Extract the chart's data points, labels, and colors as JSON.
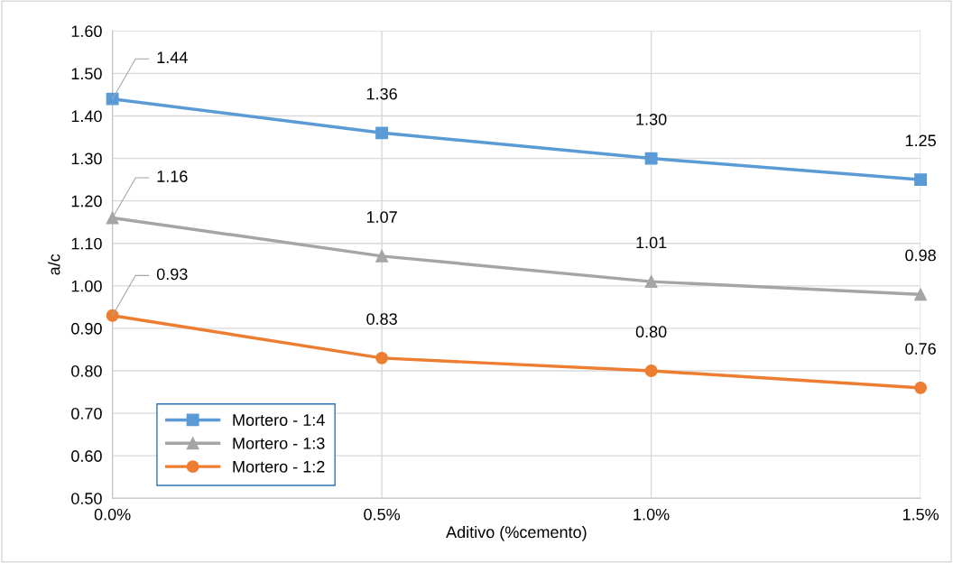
{
  "chart_data": {
    "type": "line",
    "xlabel": "Aditivo (%cemento)",
    "ylabel": "a/c",
    "x": [
      0,
      0.5,
      1.0,
      1.5
    ],
    "xlim": [
      0,
      1.5
    ],
    "xticks": [
      {
        "value": 0,
        "label": "0.0%"
      },
      {
        "value": 0.5,
        "label": "0.5%"
      },
      {
        "value": 1.0,
        "label": "1.0%"
      },
      {
        "value": 1.5,
        "label": "1.5%"
      }
    ],
    "ylim": [
      0.5,
      1.6
    ],
    "yticks": [
      {
        "value": 0.5,
        "label": "0.50"
      },
      {
        "value": 0.6,
        "label": "0.60"
      },
      {
        "value": 0.7,
        "label": "0.70"
      },
      {
        "value": 0.8,
        "label": "0.80"
      },
      {
        "value": 0.9,
        "label": "0.90"
      },
      {
        "value": 1.0,
        "label": "1.00"
      },
      {
        "value": 1.1,
        "label": "1.10"
      },
      {
        "value": 1.2,
        "label": "1.20"
      },
      {
        "value": 1.3,
        "label": "1.30"
      },
      {
        "value": 1.4,
        "label": "1.40"
      },
      {
        "value": 1.5,
        "label": "1.50"
      },
      {
        "value": 1.6,
        "label": "1.60"
      }
    ],
    "grid": true,
    "legend": "bottom left",
    "series": [
      {
        "name": "Mortero - 1:4",
        "color": "#5b9bd5",
        "marker": "square",
        "values": [
          1.44,
          1.36,
          1.3,
          1.25
        ],
        "value_labels": [
          "1.44",
          "1.36",
          "1.30",
          "1.25"
        ]
      },
      {
        "name": "Mortero - 1:3",
        "color": "#a5a5a5",
        "marker": "triangle",
        "values": [
          1.16,
          1.07,
          1.01,
          0.98
        ],
        "value_labels": [
          "1.16",
          "1.07",
          "1.01",
          "0.98"
        ]
      },
      {
        "name": "Mortero - 1:2",
        "color": "#ed7d31",
        "marker": "circle",
        "values": [
          0.93,
          0.83,
          0.8,
          0.76
        ],
        "value_labels": [
          "0.93",
          "0.83",
          "0.80",
          "0.76"
        ]
      }
    ]
  }
}
